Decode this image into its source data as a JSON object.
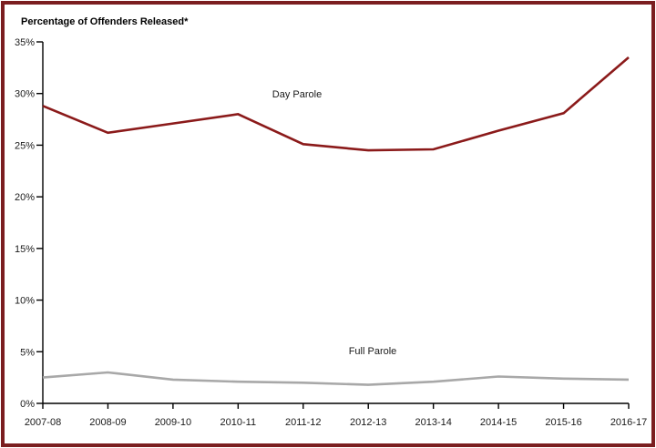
{
  "chart_data": {
    "type": "line",
    "title": "Percentage of Offenders Released*",
    "categories": [
      "2007-08",
      "2008-09",
      "2009-10",
      "2010-11",
      "2011-12",
      "2012-13",
      "2013-14",
      "2014-15",
      "2015-16",
      "2016-17"
    ],
    "series": [
      {
        "name": "Day Parole",
        "color": "#8b1a1a",
        "values": [
          28.8,
          26.2,
          27.1,
          28.0,
          25.1,
          24.5,
          24.6,
          26.4,
          28.1,
          33.5
        ]
      },
      {
        "name": "Full Parole",
        "color": "#a8a8a8",
        "values": [
          2.5,
          3.0,
          2.3,
          2.1,
          2.0,
          1.8,
          2.1,
          2.6,
          2.4,
          2.3
        ]
      }
    ],
    "xlabel": "",
    "ylabel": "",
    "ylim": [
      0,
      35
    ],
    "y_tick_step": 5,
    "y_tick_labels": [
      "0%",
      "5%",
      "10%",
      "15%",
      "20%",
      "25%",
      "30%",
      "35%"
    ],
    "grid": false,
    "legend": "inline-labels",
    "frame_color": "#7b1e20",
    "axis_color": "#000000",
    "background_color": "#ffffff"
  }
}
